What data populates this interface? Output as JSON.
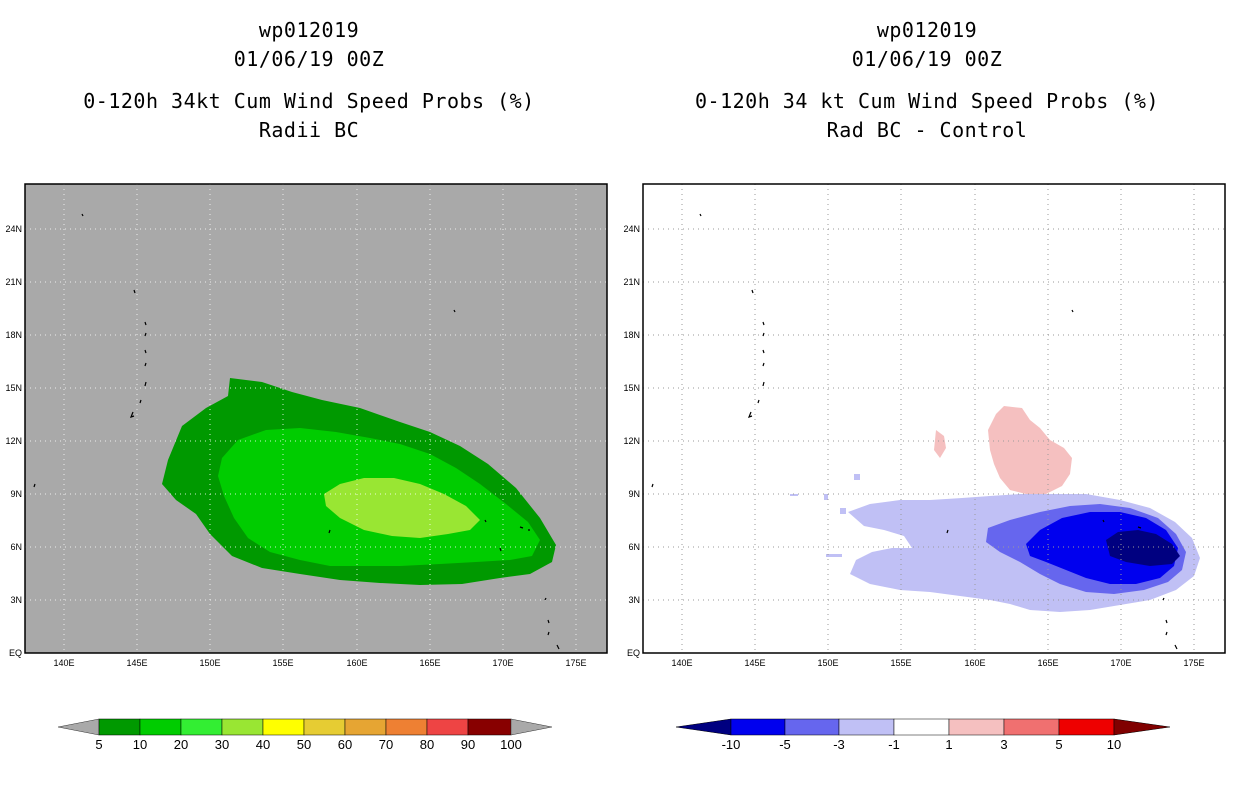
{
  "left_panel": {
    "title_lines": [
      "wp012019",
      "01/06/19 00Z",
      "0-120h 34kt Cum Wind Speed Probs (%)",
      "Radii BC"
    ],
    "background_color": "#a9a9a9",
    "colorbar": {
      "labels": [
        "5",
        "10",
        "20",
        "30",
        "40",
        "50",
        "60",
        "70",
        "80",
        "90",
        "100"
      ],
      "colors": [
        "#009900",
        "#00cc00",
        "#33ee33",
        "#99e633",
        "#ffff00",
        "#e6cc33",
        "#e6a533",
        "#ee8033",
        "#ee4444",
        "#880000",
        "#8800cc"
      ]
    }
  },
  "right_panel": {
    "title_lines": [
      "wp012019",
      "01/06/19 00Z",
      "0-120h 34 kt Cum Wind Speed Probs (%)",
      "Rad BC - Control"
    ],
    "background_color": "#ffffff",
    "colorbar": {
      "labels": [
        "-10",
        "-5",
        "-3",
        "-1",
        "1",
        "3",
        "5",
        "10"
      ],
      "colors": [
        "#000080",
        "#0000ee",
        "#6666ee",
        "#c0c0f5",
        "#ffffff",
        "#f5c0c0",
        "#f07070",
        "#ee0000",
        "#800000"
      ]
    }
  },
  "axes": {
    "lon_labels": [
      "140E",
      "145E",
      "150E",
      "155E",
      "160E",
      "165E",
      "170E",
      "175E"
    ],
    "lat_labels": [
      "EQ",
      "3N",
      "6N",
      "9N",
      "12N",
      "15N",
      "18N",
      "21N",
      "24N"
    ],
    "lon_range": [
      137.5,
      177.5
    ],
    "lat_range": [
      0,
      27
    ]
  }
}
